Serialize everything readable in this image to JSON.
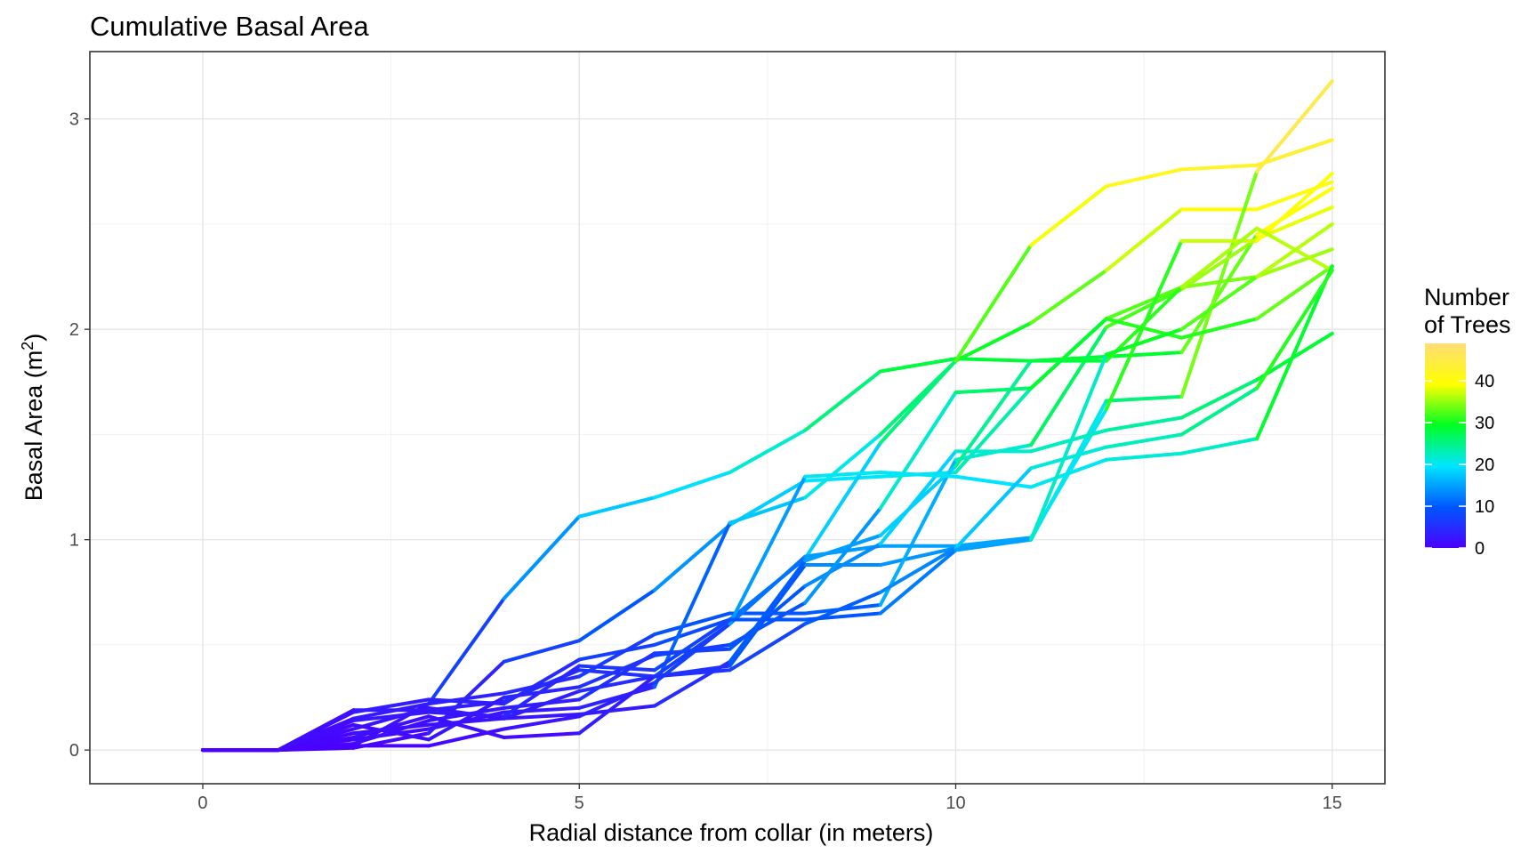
{
  "chart_data": {
    "type": "line",
    "title": "Cumulative Basal Area",
    "xlabel": "Radial distance from collar (in meters)",
    "ylabel": "Basal Area (m",
    "ylabel_superscript": "2",
    "ylabel_suffix": ")",
    "xlim": [
      -1.5,
      15.7
    ],
    "ylim": [
      -0.16,
      3.32
    ],
    "x_ticks": [
      0,
      5,
      10,
      15
    ],
    "y_ticks": [
      0,
      1,
      2,
      3
    ],
    "grid": true,
    "legend": {
      "title_line1": "Number",
      "title_line2": "of Trees",
      "position": "right",
      "scale_min": 0,
      "scale_max": 49,
      "ticks": [
        0,
        10,
        20,
        30,
        40
      ],
      "colors": [
        "#4b00ff",
        "#0057ff",
        "#00e5ff",
        "#00ff22",
        "#ffff00",
        "#ffdd77"
      ]
    },
    "x": [
      0,
      1,
      2,
      3,
      4,
      5,
      6,
      7,
      8,
      9,
      10,
      11,
      12,
      13,
      14,
      15
    ],
    "series": [
      {
        "values": [
          0,
          0,
          0.02,
          0.22,
          0.72,
          1.11,
          1.2,
          1.32,
          1.52,
          1.8,
          1.86,
          1.85,
          1.87,
          1.89,
          2.45,
          2.67
        ]
      },
      {
        "values": [
          0,
          0,
          0.01,
          0.08,
          0.42,
          0.52,
          0.76,
          1.07,
          1.28,
          1.3,
          1.32,
          1.72,
          2.05,
          2.2,
          2.25,
          2.38
        ]
      },
      {
        "values": [
          0,
          0,
          0.18,
          0.24,
          0.22,
          0.43,
          0.5,
          0.62,
          0.91,
          1.46,
          1.85,
          2.03,
          2.28,
          2.57,
          2.57,
          2.7
        ]
      },
      {
        "values": [
          0,
          0,
          0.19,
          0.19,
          0.23,
          0.38,
          0.35,
          0.4,
          0.88,
          0.88,
          0.96,
          1.0,
          1.66,
          1.68,
          2.75,
          3.18
        ]
      },
      {
        "values": [
          0,
          0,
          0.15,
          0.22,
          0.27,
          0.35,
          0.55,
          0.65,
          0.65,
          0.69,
          1.38,
          1.45,
          2.01,
          2.19,
          2.43,
          2.58
        ]
      },
      {
        "values": [
          0,
          0,
          0.05,
          0.1,
          0.18,
          0.2,
          0.3,
          1.08,
          1.2,
          1.5,
          1.85,
          2.4,
          2.68,
          2.76,
          2.78,
          2.9
        ]
      },
      {
        "values": [
          0,
          0,
          0.1,
          0.2,
          0.15,
          0.28,
          0.35,
          0.6,
          0.92,
          0.97,
          0.97,
          1.01,
          1.62,
          2.42,
          2.42,
          2.74
        ]
      },
      {
        "values": [
          0,
          0,
          0.03,
          0.14,
          0.2,
          0.24,
          0.46,
          0.48,
          0.78,
          0.98,
          1.42,
          1.42,
          1.52,
          1.58,
          1.76,
          1.98
        ]
      },
      {
        "values": [
          0,
          0,
          0.12,
          0.05,
          0.25,
          0.3,
          0.45,
          0.5,
          0.7,
          1.15,
          1.7,
          1.72,
          2.05,
          1.96,
          2.05,
          2.3
        ]
      },
      {
        "values": [
          0,
          0,
          0.08,
          0.12,
          0.15,
          0.17,
          0.21,
          0.42,
          0.9,
          1.02,
          1.35,
          1.85,
          1.85,
          2.2,
          2.48,
          2.28
        ]
      },
      {
        "values": [
          0,
          0,
          0.02,
          0.02,
          0.1,
          0.16,
          0.32,
          0.6,
          1.3,
          1.32,
          1.3,
          1.25,
          1.38,
          1.41,
          1.48,
          2.3
        ]
      },
      {
        "values": [
          0,
          0,
          0.06,
          0.16,
          0.06,
          0.08,
          0.35,
          0.38,
          0.6,
          0.75,
          0.96,
          1.34,
          1.44,
          1.5,
          1.72,
          2.28
        ]
      },
      {
        "values": [
          0,
          0,
          0.14,
          0.18,
          0.16,
          0.4,
          0.38,
          0.62,
          0.62,
          0.65,
          0.95,
          1.0,
          1.88,
          2.0,
          2.25,
          2.5
        ]
      }
    ]
  }
}
